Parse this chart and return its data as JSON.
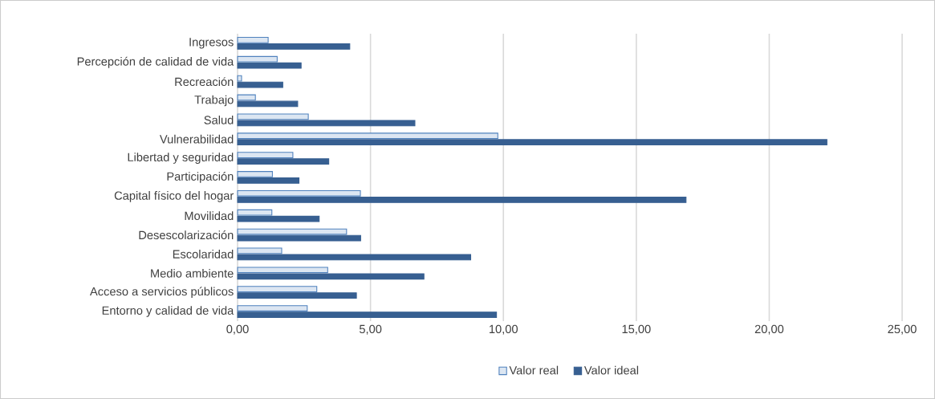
{
  "chart_data": {
    "type": "bar",
    "orientation": "horizontal",
    "categories": [
      "Ingresos",
      "Percepción de calidad de vida",
      "Recreación",
      "Trabajo",
      "Salud",
      "Vulnerabilidad",
      "Libertad y seguridad",
      "Participación",
      "Capital físico del hogar",
      "Movilidad",
      "Desescolarización",
      "Escolaridad",
      "Medio ambiente",
      "Acceso a servicios públicos",
      "Entorno y calidad de vida"
    ],
    "series": [
      {
        "name": "Valor real",
        "color": "#dce6f2",
        "values": [
          1.15,
          1.49,
          0.15,
          0.67,
          2.66,
          9.79,
          2.08,
          1.31,
          4.62,
          1.29,
          4.1,
          1.66,
          3.39,
          2.98,
          2.62
        ]
      },
      {
        "name": "Valor ideal",
        "color": "#375f91",
        "values": [
          4.22,
          2.39,
          1.7,
          2.26,
          6.67,
          22.17,
          3.43,
          2.31,
          16.87,
          3.07,
          4.63,
          8.77,
          7.01,
          4.47,
          9.74
        ]
      }
    ],
    "xlim": [
      0,
      25
    ],
    "xticks": [
      {
        "value": 0,
        "label": "0,00"
      },
      {
        "value": 5,
        "label": "5,00"
      },
      {
        "value": 10,
        "label": "10,00"
      },
      {
        "value": 15,
        "label": "15,00"
      },
      {
        "value": 20,
        "label": "20,00"
      },
      {
        "value": 25,
        "label": "25,00"
      }
    ],
    "grid": "x",
    "legend": "bottom"
  }
}
